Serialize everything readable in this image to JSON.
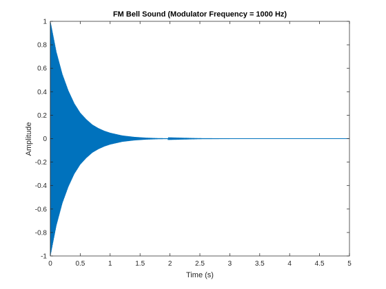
{
  "chart_data": {
    "type": "line",
    "title": "FM Bell Sound (Modulator Frequency = 1000 Hz)",
    "xlabel": "Time (s)",
    "ylabel": "Amplitude",
    "xlim": [
      0,
      5
    ],
    "ylim": [
      -1,
      1
    ],
    "x_ticks": [
      0,
      0.5,
      1,
      1.5,
      2,
      2.5,
      3,
      3.5,
      4,
      4.5,
      5
    ],
    "x_tick_labels": [
      "0",
      "0.5",
      "1",
      "1.5",
      "2",
      "2.5",
      "3",
      "3.5",
      "4",
      "4.5",
      "5"
    ],
    "y_ticks": [
      -1,
      -0.8,
      -0.6,
      -0.4,
      -0.2,
      0,
      0.2,
      0.4,
      0.6,
      0.8,
      1
    ],
    "y_tick_labels": [
      "-1",
      "-0.8",
      "-0.6",
      "-0.4",
      "-0.2",
      "0",
      "0.2",
      "0.4",
      "0.6",
      "0.8",
      "1"
    ],
    "grid": false,
    "series": [
      {
        "color": "#0072BD",
        "x": [
          0,
          0.1,
          0.2,
          0.3,
          0.4,
          0.5,
          0.6,
          0.7,
          0.8,
          0.9,
          1.0,
          1.2,
          1.4,
          1.6,
          1.8,
          2.0,
          2.5,
          3.0,
          3.5,
          4.0,
          4.5,
          5.0
        ],
        "envelope_upper": [
          1.0,
          0.74,
          0.55,
          0.41,
          0.3,
          0.22,
          0.165,
          0.12,
          0.09,
          0.067,
          0.05,
          0.027,
          0.015,
          0.008,
          0.004,
          0.0025,
          0.0007,
          0.0002,
          5e-05,
          1e-05,
          0.0,
          0.0
        ],
        "envelope_lower": [
          -1.0,
          -0.74,
          -0.55,
          -0.41,
          -0.3,
          -0.22,
          -0.165,
          -0.12,
          -0.09,
          -0.067,
          -0.05,
          -0.027,
          -0.015,
          -0.008,
          -0.004,
          -0.0025,
          -0.0007,
          -0.0002,
          -5e-05,
          -1e-05,
          0.0,
          0.0
        ]
      }
    ]
  }
}
